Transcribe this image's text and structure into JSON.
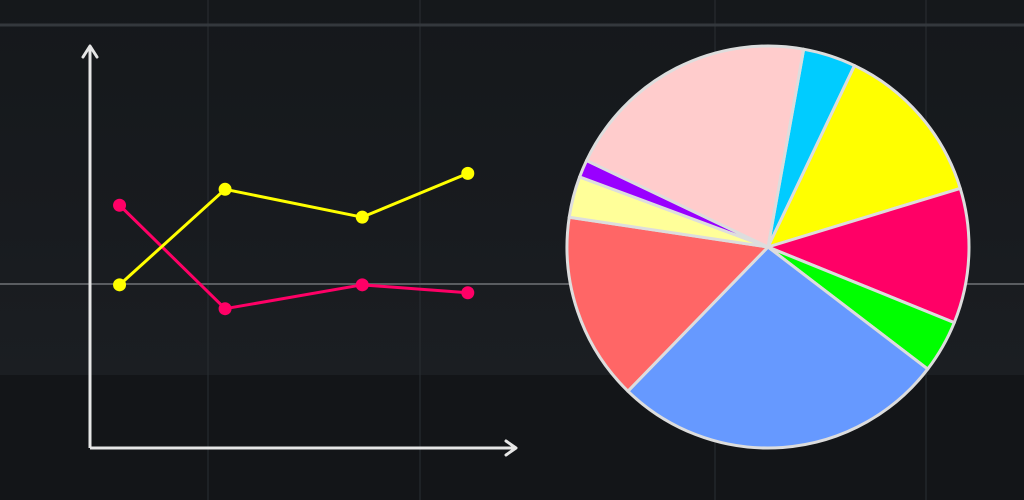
{
  "colors": {
    "background": "#141619",
    "grid": "#2a2e33",
    "grid_strong": "#5a5d61",
    "axis": "#e6e6e6",
    "slice_stroke": "#dddddd"
  },
  "chart_data": [
    {
      "type": "line",
      "title": "",
      "xlabel": "",
      "ylabel": "",
      "x": [
        1,
        2,
        3,
        4
      ],
      "xlim": [
        0.72,
        4.7
      ],
      "ylim": [
        0,
        10
      ],
      "grid": false,
      "legend": "none",
      "series": [
        {
          "color": "#ff0066",
          "x": [
            1,
            2,
            3.3,
            4.3
          ],
          "values": [
            6.1,
            3.5,
            4.1,
            3.9
          ]
        },
        {
          "color": "#ffff00",
          "x": [
            1,
            2,
            3.3,
            4.3
          ],
          "values": [
            4.1,
            6.5,
            5.8,
            6.9
          ]
        }
      ]
    },
    {
      "type": "pie",
      "title": "",
      "legend": "none",
      "slices": [
        {
          "value": 4.5,
          "color": "#00ccff"
        },
        {
          "value": 14.0,
          "color": "#ffff00"
        },
        {
          "value": 11.5,
          "color": "#ff0066"
        },
        {
          "value": 4.5,
          "color": "#00ff00"
        },
        {
          "value": 28.5,
          "color": "#6699ff"
        },
        {
          "value": 16.0,
          "color": "#ff6666"
        },
        {
          "value": 3.5,
          "color": "#ffff99"
        },
        {
          "value": 1.5,
          "color": "#9900ff"
        },
        {
          "value": 22.0,
          "color": "#ffcccc"
        }
      ]
    }
  ]
}
